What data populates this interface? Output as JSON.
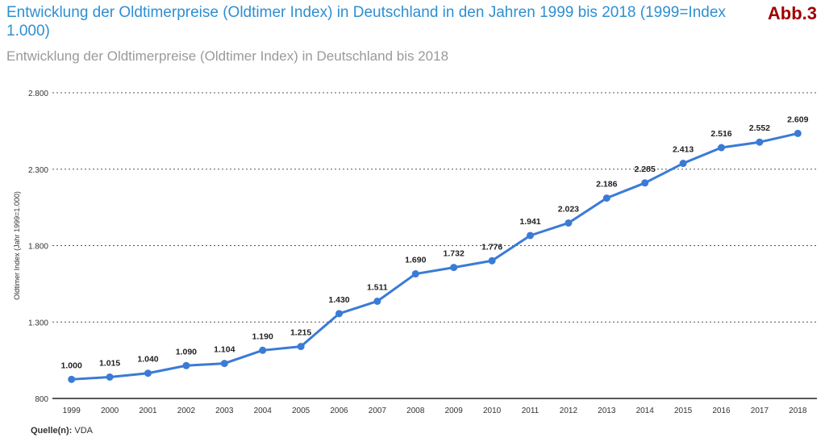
{
  "header": {
    "title": "Entwicklung der Oldtimerpreise (Oldtimer Index) in Deutschland in den Jahren 1999 bis 2018 (1999=Index 1.000)",
    "badge": "Abb.3",
    "subtitle": "Entwicklung der Oldtimerpreise (Oldtimer Index) in Deutschland bis 2018"
  },
  "footer": {
    "source_label": "Quelle(n):",
    "source_value": "VDA"
  },
  "colors": {
    "line": "#3a7bd5",
    "title": "#2e8fd2",
    "badge": "#a00000",
    "grid": "#555555"
  },
  "chart_data": {
    "type": "line",
    "title": "Entwicklung der Oldtimerpreise (Oldtimer Index) in Deutschland in den Jahren 1999 bis 2018 (1999=Index 1.000)",
    "subtitle": "Entwicklung der Oldtimerpreise (Oldtimer Index) in Deutschland bis 2018",
    "xlabel": "",
    "ylabel": "Oldtimer Index (Jahr 1999=1.000)",
    "ylim": [
      800,
      2800
    ],
    "yticks": [
      800,
      1300,
      1800,
      2300,
      2800
    ],
    "ytick_labels": [
      "800",
      "1.300",
      "1.800",
      "2.300",
      "2.800"
    ],
    "grid": "horizontal-dotted",
    "categories": [
      "1999",
      "2000",
      "2001",
      "2002",
      "2003",
      "2004",
      "2005",
      "2006",
      "2007",
      "2008",
      "2009",
      "2010",
      "2011",
      "2012",
      "2013",
      "2014",
      "2015",
      "2016",
      "2017",
      "2018"
    ],
    "values": [
      1000,
      1015,
      1040,
      1090,
      1104,
      1190,
      1215,
      1430,
      1511,
      1690,
      1732,
      1776,
      1941,
      2023,
      2186,
      2285,
      2413,
      2516,
      2552,
      2609
    ],
    "value_labels": [
      "1.000",
      "1.015",
      "1.040",
      "1.090",
      "1.104",
      "1.190",
      "1.215",
      "1.430",
      "1.511",
      "1.690",
      "1.732",
      "1.776",
      "1.941",
      "2.023",
      "2.186",
      "2.285",
      "2.413",
      "2.516",
      "2.552",
      "2.609"
    ]
  }
}
